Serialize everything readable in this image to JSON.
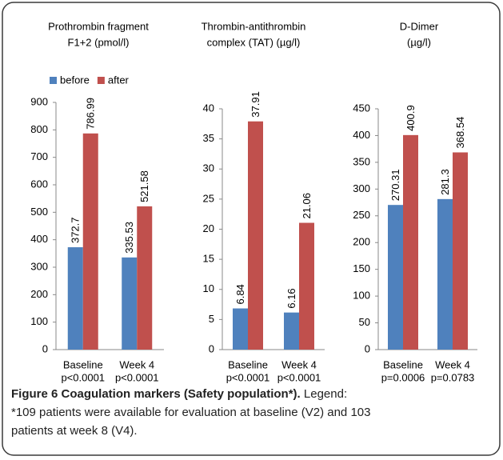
{
  "chart_data": [
    {
      "type": "bar",
      "title_lines": [
        "Prothrombin fragment",
        "F1+2 (pmol/l)"
      ],
      "categories": [
        "Baseline",
        "Week 4"
      ],
      "p_values": [
        "p<0.0001",
        "p<0.0001"
      ],
      "series": [
        {
          "name": "before",
          "color": "#4f81bd",
          "values": [
            372.7,
            335.53
          ]
        },
        {
          "name": "after",
          "color": "#c0504d",
          "values": [
            786.99,
            521.58
          ]
        }
      ],
      "ylim": [
        0,
        900
      ],
      "yticks": [
        0,
        100,
        200,
        300,
        400,
        500,
        600,
        700,
        800,
        900
      ],
      "legend": "top"
    },
    {
      "type": "bar",
      "title_lines": [
        "Thrombin-antithrombin",
        "complex (TAT) (µg/l)"
      ],
      "categories": [
        "Baseline",
        "Week 4"
      ],
      "p_values": [
        "p<0.0001",
        "p<0.0001"
      ],
      "series": [
        {
          "name": "before",
          "color": "#4f81bd",
          "values": [
            6.84,
            6.16
          ]
        },
        {
          "name": "after",
          "color": "#c0504d",
          "values": [
            37.91,
            21.06
          ]
        }
      ],
      "ylim": [
        0,
        40
      ],
      "yticks": [
        0,
        5,
        10,
        15,
        20,
        25,
        30,
        35,
        40
      ]
    },
    {
      "type": "bar",
      "title_lines": [
        "D-Dimer",
        "(µg/l)"
      ],
      "categories": [
        "Baseline",
        "Week 4"
      ],
      "p_values": [
        "p=0.0006",
        "p=0.0783"
      ],
      "series": [
        {
          "name": "before",
          "color": "#4f81bd",
          "values": [
            270.31,
            281.3
          ]
        },
        {
          "name": "after",
          "color": "#c0504d",
          "values": [
            400.9,
            368.54
          ]
        }
      ],
      "ylim": [
        0,
        450
      ],
      "yticks": [
        0,
        50,
        100,
        150,
        200,
        250,
        300,
        350,
        400,
        450
      ]
    }
  ],
  "caption": {
    "bold": "Figure 6 Coagulation markers (Safety population*).",
    "lines": [
      " Legend:",
      "*109 patients were available for evaluation at baseline (V2) and 103",
      "patients at week 8 (V4)."
    ]
  }
}
